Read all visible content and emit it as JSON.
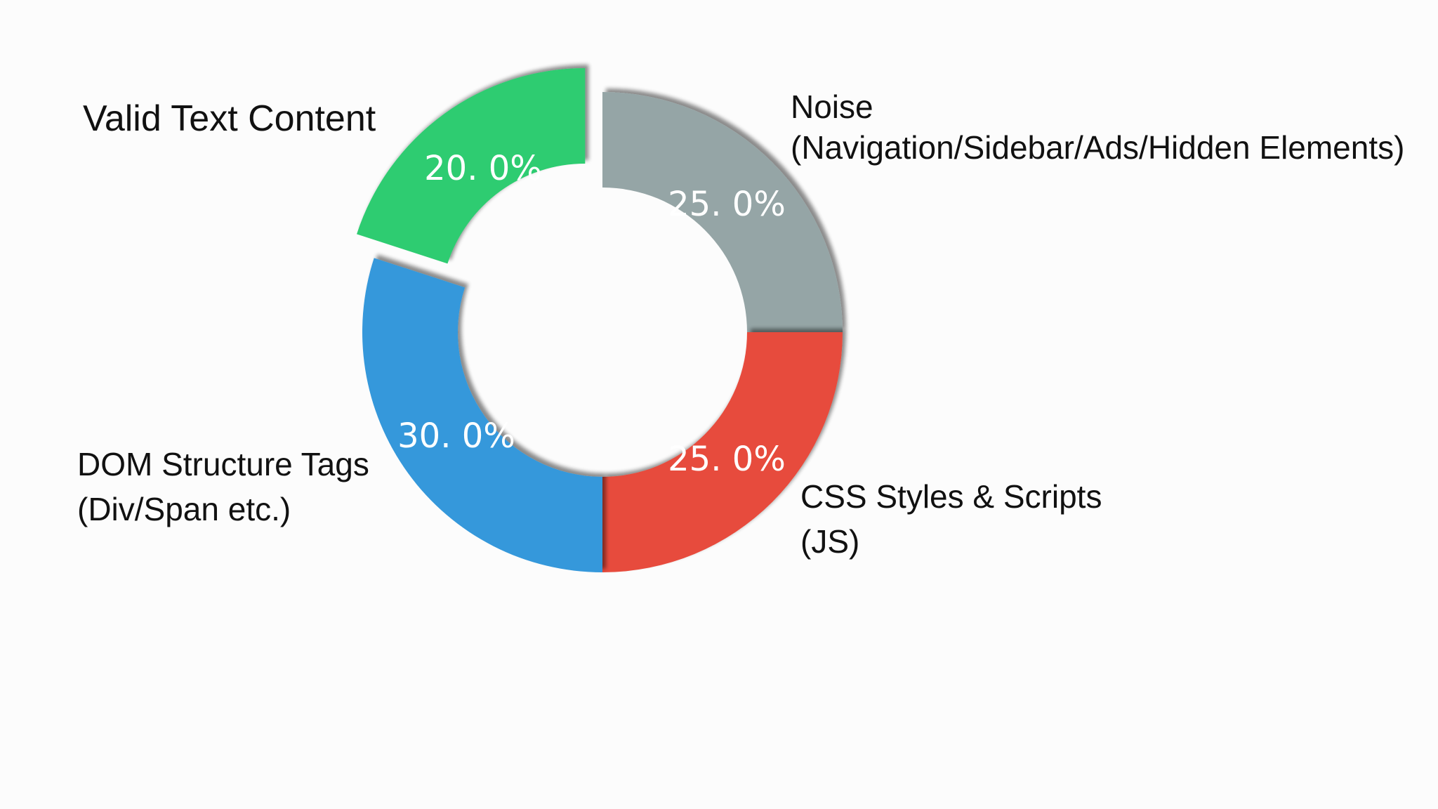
{
  "chart_data": {
    "type": "pie",
    "variant": "donut",
    "categories": [
      "Noise\n(Navigation/Sidebar/Ads/Hidden Elements)",
      "CSS Styles & Scripts\n(JS)",
      "DOM Structure Tags\n(Div/Span etc.)",
      "Valid Text Content"
    ],
    "values": [
      25.0,
      25.0,
      30.0,
      20.0
    ],
    "value_labels": [
      "25. 0%",
      "25. 0%",
      "30. 0%",
      "20. 0%"
    ],
    "colors": [
      "#95a5a6",
      "#e74c3c",
      "#3498db",
      "#2ecc71"
    ],
    "exploded": [
      false,
      false,
      false,
      true
    ],
    "shadow": true,
    "start_angle": "12 o'clock, clockwise",
    "legend": "none (labels beside slices)"
  }
}
